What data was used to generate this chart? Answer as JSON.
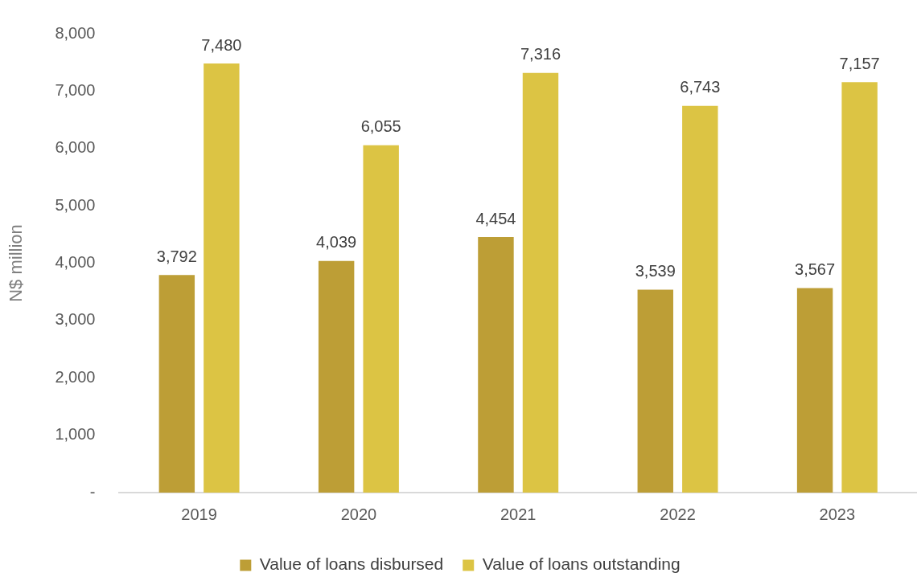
{
  "chart_data": {
    "type": "bar",
    "ylabel": "N$ million",
    "categories": [
      "2019",
      "2020",
      "2021",
      "2022",
      "2023"
    ],
    "series": [
      {
        "name": "Value of loans disbursed",
        "color": "#bd9e36",
        "values": [
          3792,
          4039,
          4454,
          3539,
          3567
        ],
        "value_labels": [
          "3,792",
          "4,039",
          "4,454",
          "3,539",
          "3,567"
        ]
      },
      {
        "name": "Value of loans outstanding",
        "color": "#dcc444",
        "values": [
          7480,
          6055,
          7316,
          6743,
          7157
        ],
        "value_labels": [
          "7,480",
          "6,055",
          "7,316",
          "6,743",
          "7,157"
        ]
      }
    ],
    "ylim": [
      0,
      8000
    ],
    "yticks": [
      {
        "value": 0,
        "label": "-"
      },
      {
        "value": 1000,
        "label": "1,000"
      },
      {
        "value": 2000,
        "label": "2,000"
      },
      {
        "value": 3000,
        "label": "3,000"
      },
      {
        "value": 4000,
        "label": "4,000"
      },
      {
        "value": 5000,
        "label": "5,000"
      },
      {
        "value": 6000,
        "label": "6,000"
      },
      {
        "value": 7000,
        "label": "7,000"
      },
      {
        "value": 8000,
        "label": "8,000"
      }
    ],
    "grid": false,
    "legend": "bottom"
  }
}
